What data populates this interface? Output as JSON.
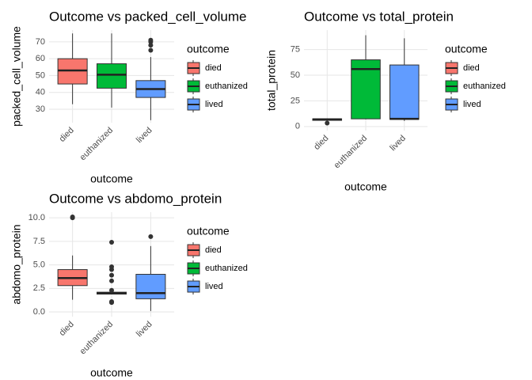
{
  "chart_data": [
    {
      "type": "box",
      "title": "Outcome vs packed_cell_volume",
      "x_label": "outcome",
      "y_label": "packed_cell_volume",
      "legend_title": "outcome",
      "categories": [
        "died",
        "euthanized",
        "lived"
      ],
      "colors": [
        "#F8766D",
        "#00BA38",
        "#619CFF"
      ],
      "grid": true,
      "ylim": [
        22,
        77
      ],
      "yticks": [
        30,
        40,
        50,
        60,
        70
      ],
      "boxes": [
        {
          "min": 33,
          "q1": 45,
          "median": 53,
          "q3": 60,
          "max": 75,
          "outliers": []
        },
        {
          "min": 31,
          "q1": 42.5,
          "median": 50.5,
          "q3": 57,
          "max": 75,
          "outliers": []
        },
        {
          "min": 23.5,
          "q1": 37,
          "median": 42,
          "q3": 47,
          "max": 61,
          "outliers": [
            65,
            68,
            70,
            71
          ]
        }
      ]
    },
    {
      "type": "box",
      "title": "Outcome vs total_protein",
      "x_label": "outcome",
      "y_label": "total_protein",
      "legend_title": "outcome",
      "categories": [
        "died",
        "euthanized",
        "lived"
      ],
      "colors": [
        "#F8766D",
        "#00BA38",
        "#619CFF"
      ],
      "grid": true,
      "ylim": [
        -4,
        94
      ],
      "yticks": [
        0,
        25,
        50,
        75
      ],
      "boxes": [
        {
          "min": 5.5,
          "q1": 6,
          "median": 7,
          "q3": 7.5,
          "max": 8,
          "outliers": [
            3.3
          ]
        },
        {
          "min": 7,
          "q1": 7.5,
          "median": 56,
          "q3": 65,
          "max": 89,
          "outliers": []
        },
        {
          "min": 5.5,
          "q1": 7,
          "median": 7.5,
          "q3": 60,
          "max": 86,
          "outliers": []
        }
      ]
    },
    {
      "type": "box",
      "title": "Outcome vs abdomo_protein",
      "x_label": "outcome",
      "y_label": "abdomo_protein",
      "legend_title": "outcome",
      "categories": [
        "died",
        "euthanized",
        "lived"
      ],
      "colors": [
        "#F8766D",
        "#00BA38",
        "#619CFF"
      ],
      "grid": true,
      "ylim": [
        -0.5,
        10.6
      ],
      "yticks": [
        {
          "value": 0,
          "label": "0.0"
        },
        {
          "value": 2.5,
          "label": "2.5"
        },
        {
          "value": 5,
          "label": "5.0"
        },
        {
          "value": 7.5,
          "label": "7.5"
        },
        {
          "value": 10,
          "label": "10.0"
        }
      ],
      "boxes": [
        {
          "min": 1.3,
          "q1": 2.8,
          "median": 3.6,
          "q3": 4.5,
          "max": 6,
          "outliers": [
            10,
            10.1
          ]
        },
        {
          "min": 1.9,
          "q1": 1.9,
          "median": 2,
          "q3": 2.1,
          "max": 2.1,
          "outliers": [
            1,
            1.1,
            2.3,
            3.3,
            3.9,
            4.5,
            4.8,
            7.4
          ]
        },
        {
          "min": 0.1,
          "q1": 1.4,
          "median": 2,
          "q3": 4,
          "max": 7,
          "outliers": [
            8
          ]
        }
      ]
    }
  ]
}
